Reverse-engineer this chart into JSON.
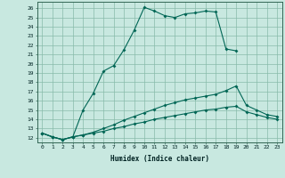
{
  "xlabel": "Humidex (Indice chaleur)",
  "bg_color": "#c8e8e0",
  "grid_color": "#88bbaa",
  "line_color": "#006655",
  "xlim_min": -0.5,
  "xlim_max": 23.5,
  "ylim_min": 11.5,
  "ylim_max": 26.7,
  "xticks": [
    0,
    1,
    2,
    3,
    4,
    5,
    6,
    7,
    8,
    9,
    10,
    11,
    12,
    13,
    14,
    15,
    16,
    17,
    18,
    19,
    20,
    21,
    22,
    23
  ],
  "yticks": [
    12,
    13,
    14,
    15,
    16,
    17,
    18,
    19,
    20,
    21,
    22,
    23,
    24,
    25,
    26
  ],
  "line1_x": [
    0,
    1,
    2,
    3,
    4,
    5,
    6,
    7,
    8,
    9,
    10,
    11,
    12,
    13,
    14,
    15,
    16,
    17,
    18,
    19
  ],
  "line1_y": [
    12.5,
    12.1,
    11.8,
    12.1,
    15.0,
    16.8,
    19.2,
    19.8,
    21.5,
    23.6,
    26.1,
    25.7,
    25.2,
    25.0,
    25.4,
    25.5,
    25.7,
    25.6,
    21.6,
    21.4
  ],
  "line2_x": [
    0,
    1,
    2,
    3,
    4,
    5,
    6,
    7,
    8,
    9,
    10,
    11,
    12,
    13,
    14,
    15,
    16,
    17,
    18,
    19,
    20,
    21,
    22,
    23
  ],
  "line2_y": [
    12.5,
    12.1,
    11.8,
    12.1,
    12.3,
    12.6,
    13.0,
    13.4,
    13.9,
    14.3,
    14.7,
    15.1,
    15.5,
    15.8,
    16.1,
    16.3,
    16.5,
    16.7,
    17.1,
    17.6,
    15.5,
    15.0,
    14.5,
    14.3
  ],
  "line3_x": [
    0,
    1,
    2,
    3,
    4,
    5,
    6,
    7,
    8,
    9,
    10,
    11,
    12,
    13,
    14,
    15,
    16,
    17,
    18,
    19,
    20,
    21,
    22,
    23
  ],
  "line3_y": [
    12.5,
    12.1,
    11.8,
    12.1,
    12.3,
    12.5,
    12.7,
    13.0,
    13.2,
    13.5,
    13.7,
    14.0,
    14.2,
    14.4,
    14.6,
    14.8,
    15.0,
    15.1,
    15.3,
    15.4,
    14.8,
    14.5,
    14.2,
    14.0
  ]
}
